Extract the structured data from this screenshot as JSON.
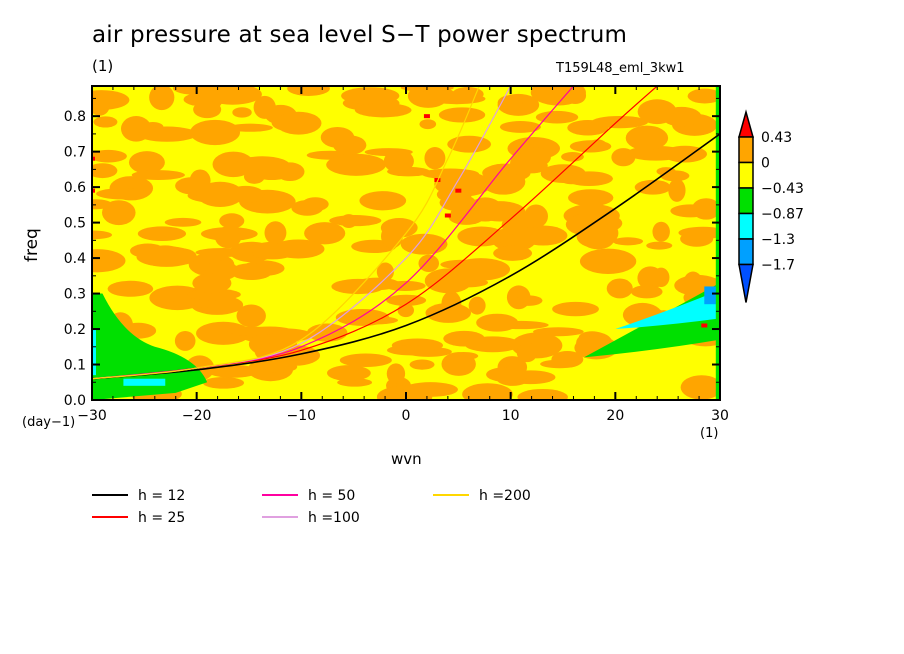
{
  "title": "air pressure at sea level S−T power spectrum",
  "unit_top": "(1)",
  "run_label": "T159L48_eml_3kw1",
  "chart_data": {
    "type": "heatmap",
    "title": "air pressure at sea level S−T power spectrum",
    "xlabel": "wvn",
    "ylabel": "freq",
    "x_unit": "(1)",
    "y_unit": "(day−1)",
    "xlim": [
      -30,
      30
    ],
    "ylim": [
      0,
      0.885
    ],
    "x_ticks": [
      -30,
      -20,
      -10,
      0,
      10,
      20,
      30
    ],
    "x_tick_labels": [
      "−30",
      "−20",
      "−10",
      "0",
      "10",
      "20",
      "30"
    ],
    "y_ticks": [
      0,
      0.1,
      0.2,
      0.3,
      0.4,
      0.5,
      0.6,
      0.7,
      0.8
    ],
    "y_tick_labels": [
      "0.0",
      "0.1",
      "0.2",
      "0.3",
      "0.4",
      "0.5",
      "0.6",
      "0.7",
      "0.8"
    ],
    "colorbar": {
      "levels": [
        "0.43",
        "0",
        "−0.43",
        "−0.87",
        "−1.3",
        "−1.7"
      ],
      "colors": [
        "#ff0000",
        "#ffa500",
        "#ffff00",
        "#00e000",
        "#00ffff",
        "#00a0ff",
        "#0050ff"
      ]
    },
    "field_description_regions": {
      "background_values": "mostly between −0.43 and 0.43 (yellow/orange mottled)",
      "low_band": "values −0.87 to −1.7 near wvn 15–30, freq 0.17–0.32",
      "low_left": "values −0.43 to −1.3 near wvn −30 to −22, freq 0.0–0.15"
    },
    "series": [
      {
        "name": "h = 12",
        "color": "#000000",
        "x": [
          -30,
          -20,
          -10,
          0,
          10,
          20,
          30
        ],
        "y": [
          0.06,
          0.085,
          0.13,
          0.21,
          0.35,
          0.54,
          0.75
        ]
      },
      {
        "name": "h = 25",
        "color": "#ff0000",
        "x": [
          -30,
          -20,
          -10,
          0,
          10,
          20,
          24
        ],
        "y": [
          0.06,
          0.09,
          0.14,
          0.27,
          0.51,
          0.78,
          0.885
        ]
      },
      {
        "name": "h = 50",
        "color": "#ff00a0",
        "x": [
          -30,
          -20,
          -10,
          0,
          10,
          16
        ],
        "y": [
          0.06,
          0.09,
          0.15,
          0.33,
          0.68,
          0.885
        ]
      },
      {
        "name": "h =100",
        "color": "#e0a0e0",
        "x": [
          -30,
          -20,
          -10,
          0,
          5,
          10
        ],
        "y": [
          0.06,
          0.09,
          0.16,
          0.4,
          0.62,
          0.885
        ]
      },
      {
        "name": "h =200",
        "color": "#ffd700",
        "x": [
          -30,
          -20,
          -10,
          0,
          4,
          7
        ],
        "y": [
          0.06,
          0.09,
          0.17,
          0.47,
          0.68,
          0.885
        ]
      }
    ]
  }
}
